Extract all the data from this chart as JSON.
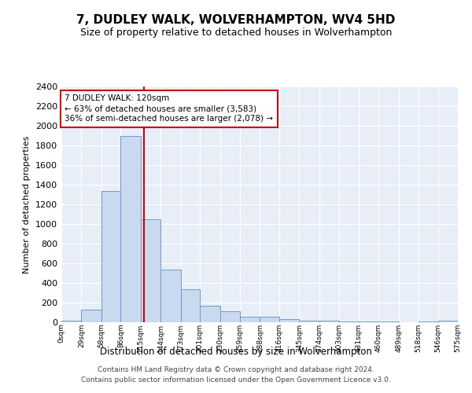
{
  "title": "7, DUDLEY WALK, WOLVERHAMPTON, WV4 5HD",
  "subtitle": "Size of property relative to detached houses in Wolverhampton",
  "xlabel": "Distribution of detached houses by size in Wolverhampton",
  "ylabel": "Number of detached properties",
  "bar_values": [
    20,
    130,
    1340,
    1900,
    1045,
    540,
    340,
    170,
    110,
    55,
    55,
    35,
    20,
    15,
    10,
    5,
    5,
    0,
    5,
    20
  ],
  "bin_labels": [
    "0sqm",
    "29sqm",
    "58sqm",
    "86sqm",
    "115sqm",
    "144sqm",
    "173sqm",
    "201sqm",
    "230sqm",
    "259sqm",
    "288sqm",
    "316sqm",
    "345sqm",
    "374sqm",
    "403sqm",
    "431sqm",
    "460sqm",
    "489sqm",
    "518sqm",
    "546sqm",
    "575sqm"
  ],
  "bin_edges": [
    0,
    29,
    58,
    86,
    115,
    144,
    173,
    201,
    230,
    259,
    288,
    316,
    345,
    374,
    403,
    431,
    460,
    489,
    518,
    546,
    575
  ],
  "bar_color": "#c9d9f0",
  "bar_edge_color": "#7398c9",
  "property_size": 120,
  "vline_color": "#cc0000",
  "annotation_line1": "7 DUDLEY WALK: 120sqm",
  "annotation_line2": "← 63% of detached houses are smaller (3,583)",
  "annotation_line3": "36% of semi-detached houses are larger (2,078) →",
  "annotation_box_edge": "#cc0000",
  "ylim": [
    0,
    2400
  ],
  "yticks": [
    0,
    200,
    400,
    600,
    800,
    1000,
    1200,
    1400,
    1600,
    1800,
    2000,
    2200,
    2400
  ],
  "background_color": "#e8eef8",
  "grid_color": "#ffffff",
  "footer_line1": "Contains HM Land Registry data © Crown copyright and database right 2024.",
  "footer_line2": "Contains public sector information licensed under the Open Government Licence v3.0."
}
